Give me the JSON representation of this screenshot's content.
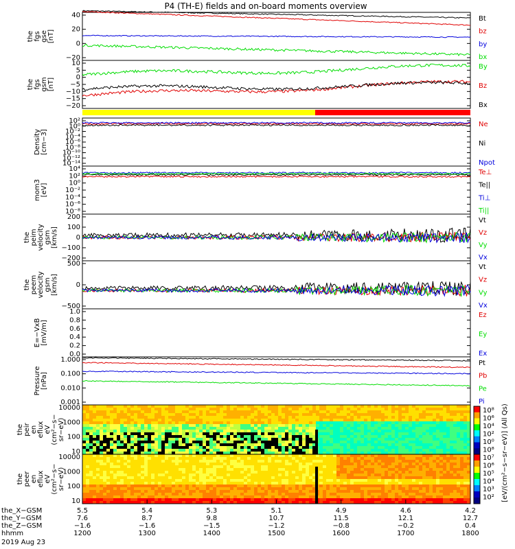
{
  "title": "P4 (TH-E) fields and on-board moments overview",
  "colors": {
    "black": "#000000",
    "red": "#e00000",
    "blue": "#0000dd",
    "green": "#00dd00",
    "yellow": "#ffff00",
    "pink": "#ff0000"
  },
  "chart_data": [
    {
      "type": "line",
      "ylabel": [
        "the",
        "fgs",
        "gse",
        "[nT]"
      ],
      "ylim": [
        -20,
        40
      ],
      "yticks": [
        "40",
        "20",
        "0",
        "−20"
      ],
      "series": [
        {
          "name": "Bt",
          "color": "black",
          "start": 42,
          "end": 33
        },
        {
          "name": "bz",
          "color": "red",
          "start": 41,
          "end": 24
        },
        {
          "name": "by",
          "color": "blue",
          "start": 11,
          "end": 9
        },
        {
          "name": "bx",
          "color": "green",
          "start": -1,
          "end": -13
        }
      ]
    },
    {
      "type": "line",
      "ylabel": [
        "the",
        "fgs",
        "gsm",
        "[nT]"
      ],
      "ylim": [
        -20,
        10
      ],
      "yticks": [
        "10",
        "5",
        "0",
        "−5",
        "−10",
        "−15",
        "−20"
      ],
      "series": [
        {
          "name": "By",
          "color": "green",
          "start": 1,
          "end": 6
        },
        {
          "name": "Bz",
          "color": "red",
          "start": -12,
          "end": -4
        },
        {
          "name": "Bx",
          "color": "black",
          "start": -8,
          "end": -5
        }
      ]
    },
    {
      "type": "bar",
      "name": "mode-bar",
      "segments": [
        {
          "color": "yellow",
          "from": 0,
          "to": 0.6
        },
        {
          "color": "pink",
          "from": 0.6,
          "to": 1
        }
      ]
    },
    {
      "type": "line",
      "ylabel": [
        "Density",
        "[cm−3]"
      ],
      "yticks": [
        "10²",
        "10⁰",
        "10⁻²",
        "10⁻⁴",
        "10⁻⁶",
        "10⁻⁸",
        "10⁻¹⁰",
        "10⁻¹²",
        "10⁻¹⁴"
      ],
      "series": [
        {
          "name": "Ne",
          "color": "red"
        },
        {
          "name": "Ni",
          "color": "black"
        },
        {
          "name": "Npot",
          "color": "blue"
        }
      ]
    },
    {
      "type": "line",
      "ylabel": [
        "mom3",
        "[eV]"
      ],
      "yticks": [
        "10⁴",
        "10²",
        "10⁰",
        "10⁻²",
        "10⁻⁴",
        "10⁻⁶",
        "10⁻⁸"
      ],
      "series": [
        {
          "name": "Te⊥",
          "color": "red"
        },
        {
          "name": "Te||",
          "color": "black"
        },
        {
          "name": "Ti⊥",
          "color": "blue"
        },
        {
          "name": "Ti||",
          "color": "green"
        }
      ]
    },
    {
      "type": "line",
      "ylabel": [
        "the",
        "peim",
        "velocity",
        "gsm",
        "[km/s]"
      ],
      "ylim": [
        -200,
        200
      ],
      "yticks": [
        "200",
        "100",
        "0",
        "−100",
        "−200"
      ],
      "series": [
        {
          "name": "Vt",
          "color": "black"
        },
        {
          "name": "Vz",
          "color": "red"
        },
        {
          "name": "Vy",
          "color": "green"
        },
        {
          "name": "Vx",
          "color": "blue"
        }
      ]
    },
    {
      "type": "line",
      "ylabel": [
        "the",
        "peem",
        "velocity",
        "gsm",
        "[km/s]"
      ],
      "ylim": [
        -500,
        1000
      ],
      "yticks": [
        "500",
        "0",
        "−500"
      ],
      "series": [
        {
          "name": "Vt",
          "color": "black"
        },
        {
          "name": "Vz",
          "color": "red"
        },
        {
          "name": "Vy",
          "color": "green"
        },
        {
          "name": "Vx",
          "color": "blue"
        }
      ]
    },
    {
      "type": "line",
      "ylabel": [
        "E=−VxB",
        "[mV/m]"
      ],
      "ylim": [
        0,
        1
      ],
      "yticks": [
        "1.0",
        "0.8",
        "0.6",
        "0.4",
        "0.2",
        "0.0"
      ],
      "series": [
        {
          "name": "Ez",
          "color": "red"
        },
        {
          "name": "Ey",
          "color": "green"
        },
        {
          "name": "Ex",
          "color": "blue"
        }
      ]
    },
    {
      "type": "line",
      "ylabel": [
        "Pressure",
        "[nPa]"
      ],
      "yticks": [
        "1.000",
        "0.100",
        "0.010",
        "0.001"
      ],
      "series": [
        {
          "name": "Pt",
          "color": "black"
        },
        {
          "name": "Pb",
          "color": "red"
        },
        {
          "name": "Pe",
          "color": "green"
        },
        {
          "name": "Pi",
          "color": "blue"
        }
      ]
    },
    {
      "type": "heatmap",
      "ylabel": [
        "the",
        "peir",
        "en",
        "eflux",
        "eV",
        "(cm²−s−",
        "sr−eV)"
      ],
      "yticks": [
        "10000",
        "1000",
        "100",
        "10"
      ]
    },
    {
      "type": "heatmap",
      "ylabel": [
        "the",
        "peer",
        "en",
        "eflux",
        "eV",
        "(cm²−s−",
        "sr−eV)"
      ],
      "yticks": [
        "10000",
        "1000",
        "100",
        "10"
      ]
    }
  ],
  "colorbar": {
    "label": "[eV/(cm²−s−sr−eV)] (All Qs)",
    "ticks": [
      "10⁸",
      "10⁶",
      "10⁴",
      "10²",
      "10⁰",
      "10⁸",
      "10⁷",
      "10⁶",
      "10⁵",
      "10⁴",
      "10³",
      "10²"
    ]
  },
  "xaxis": {
    "rows": [
      {
        "name": "the_X−GSM",
        "values": [
          "5.5",
          "5.4",
          "5.3",
          "5.1",
          "4.9",
          "4.6",
          "4.2"
        ]
      },
      {
        "name": "the_Y−GSM",
        "values": [
          "7.6",
          "8.7",
          "9.8",
          "10.7",
          "11.5",
          "12.1",
          "12.7"
        ]
      },
      {
        "name": "the_Z−GSM",
        "values": [
          "−1.6",
          "−1.6",
          "−1.5",
          "−1.2",
          "−0.8",
          "−0.2",
          "0.4"
        ]
      },
      {
        "name": "hhmm",
        "values": [
          "1200",
          "1300",
          "1400",
          "1500",
          "1600",
          "1700",
          "1800"
        ]
      }
    ],
    "date": "2019 Aug 23"
  }
}
